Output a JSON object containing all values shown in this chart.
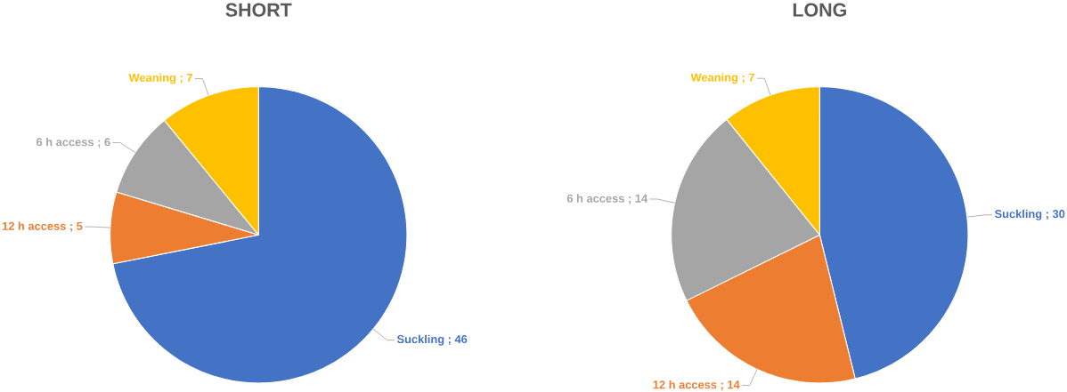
{
  "chart_data": [
    {
      "type": "pie",
      "title": "SHORT",
      "categories": [
        "Suckling",
        "12 h access",
        "6 h access",
        "Weaning"
      ],
      "values": [
        46,
        5,
        6,
        7
      ],
      "value_labels": [
        "; 46",
        "; 5",
        "; 6",
        "; 7"
      ],
      "colors": [
        "#4472c4",
        "#ed7d31",
        "#a5a5a5",
        "#ffc000"
      ]
    },
    {
      "type": "pie",
      "title": "LONG",
      "categories": [
        "Suckling",
        "12 h access",
        "6 h access",
        "Weaning"
      ],
      "values": [
        30,
        14,
        14,
        7
      ],
      "value_labels": [
        "; 30",
        "; 14",
        "; 14",
        "; 7"
      ],
      "colors": [
        "#4472c4",
        "#ed7d31",
        "#a5a5a5",
        "#ffc000"
      ]
    }
  ]
}
